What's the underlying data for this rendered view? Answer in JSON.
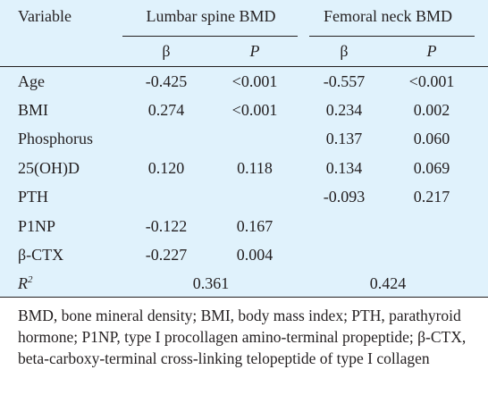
{
  "table": {
    "header": {
      "variable": "Variable",
      "group1": "Lumbar spine BMD",
      "group2": "Femoral neck BMD",
      "beta": "β",
      "p": "P"
    },
    "rows": [
      {
        "variable": "Age",
        "ls_beta": "-0.425",
        "ls_p": "<0.001",
        "fn_beta": "-0.557",
        "fn_p": "<0.001"
      },
      {
        "variable": "BMI",
        "ls_beta": "0.274",
        "ls_p": "<0.001",
        "fn_beta": "0.234",
        "fn_p": "0.002"
      },
      {
        "variable": "Phosphorus",
        "ls_beta": "",
        "ls_p": "",
        "fn_beta": "0.137",
        "fn_p": "0.060"
      },
      {
        "variable": "25(OH)D",
        "ls_beta": "0.120",
        "ls_p": "0.118",
        "fn_beta": "0.134",
        "fn_p": "0.069"
      },
      {
        "variable": "PTH",
        "ls_beta": "",
        "ls_p": "",
        "fn_beta": "-0.093",
        "fn_p": "0.217"
      },
      {
        "variable": "P1NP",
        "ls_beta": "-0.122",
        "ls_p": "0.167",
        "fn_beta": "",
        "fn_p": ""
      },
      {
        "variable": "β-CTX",
        "ls_beta": "-0.227",
        "ls_p": "0.004",
        "fn_beta": "",
        "fn_p": ""
      }
    ],
    "r2": {
      "label": "R",
      "sup": "2",
      "ls": "0.361",
      "fn": "0.424"
    }
  },
  "footnote": "BMD, bone mineral density; BMI, body mass index; PTH, parathyroid hormone; P1NP, type I procollagen amino-terminal propeptide; β-CTX, beta-carboxy-terminal cross-linking telopeptide of type I collagen"
}
